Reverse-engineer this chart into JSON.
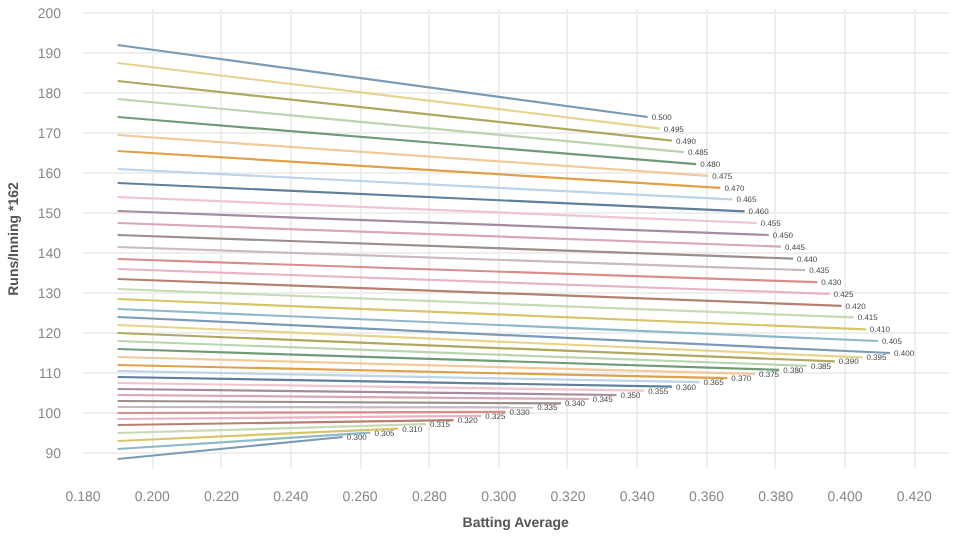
{
  "chart_data": {
    "type": "line",
    "xlabel": "Batting Average",
    "ylabel": "Runs/Inning *162",
    "xlim": [
      0.18,
      0.43
    ],
    "ylim": [
      86,
      201
    ],
    "xticks": [
      {
        "value": 0.18,
        "label": "0.180"
      },
      {
        "value": 0.2,
        "label": "0.200"
      },
      {
        "value": 0.22,
        "label": "0.220"
      },
      {
        "value": 0.24,
        "label": "0.240"
      },
      {
        "value": 0.26,
        "label": "0.260"
      },
      {
        "value": 0.28,
        "label": "0.280"
      },
      {
        "value": 0.3,
        "label": "0.300"
      },
      {
        "value": 0.32,
        "label": "0.320"
      },
      {
        "value": 0.34,
        "label": "0.340"
      },
      {
        "value": 0.36,
        "label": "0.360"
      },
      {
        "value": 0.38,
        "label": "0.380"
      },
      {
        "value": 0.4,
        "label": "0.400"
      },
      {
        "value": 0.42,
        "label": "0.420"
      }
    ],
    "yticks": [
      90,
      100,
      110,
      120,
      130,
      140,
      150,
      160,
      170,
      180,
      190,
      200
    ],
    "grid": true,
    "legend": false,
    "marker": "none",
    "line_style": "solid",
    "series": [
      {
        "name": "0.500",
        "color": "#7a9bb5",
        "x": [
          0.19,
          0.343
        ],
        "values": [
          192,
          174
        ]
      },
      {
        "name": "0.495",
        "color": "#e6d38c",
        "x": [
          0.19,
          0.3465
        ],
        "values": [
          187.5,
          171.1
        ]
      },
      {
        "name": "0.490",
        "color": "#b0a860",
        "x": [
          0.19,
          0.35
        ],
        "values": [
          183,
          168.1
        ]
      },
      {
        "name": "0.485",
        "color": "#b9d5b0",
        "x": [
          0.19,
          0.3535
        ],
        "values": [
          178.5,
          165.2
        ]
      },
      {
        "name": "0.480",
        "color": "#6f9c77",
        "x": [
          0.19,
          0.357
        ],
        "values": [
          174,
          162.2
        ]
      },
      {
        "name": "0.475",
        "color": "#f2c99a",
        "x": [
          0.19,
          0.3605
        ],
        "values": [
          169.5,
          159.3
        ]
      },
      {
        "name": "0.470",
        "color": "#e0a04a",
        "x": [
          0.19,
          0.364
        ],
        "values": [
          165.5,
          156.3
        ]
      },
      {
        "name": "0.465",
        "color": "#bcd3e8",
        "x": [
          0.19,
          0.3675
        ],
        "values": [
          161,
          153.4
        ]
      },
      {
        "name": "0.460",
        "color": "#5f7f9c",
        "x": [
          0.19,
          0.371
        ],
        "values": [
          157.5,
          150.4
        ]
      },
      {
        "name": "0.455",
        "color": "#f0c4cc",
        "x": [
          0.19,
          0.3745
        ],
        "values": [
          154,
          147.5
        ]
      },
      {
        "name": "0.450",
        "color": "#a58aa0",
        "x": [
          0.19,
          0.378
        ],
        "values": [
          150.5,
          144.5
        ]
      },
      {
        "name": "0.445",
        "color": "#d9a7b5",
        "x": [
          0.19,
          0.3815
        ],
        "values": [
          147.5,
          141.6
        ]
      },
      {
        "name": "0.440",
        "color": "#9a8f8a",
        "x": [
          0.19,
          0.385
        ],
        "values": [
          144.5,
          138.6
        ]
      },
      {
        "name": "0.435",
        "color": "#c9b9c4",
        "x": [
          0.19,
          0.3885
        ],
        "values": [
          141.5,
          135.7
        ]
      },
      {
        "name": "0.430",
        "color": "#d98c8c",
        "x": [
          0.19,
          0.392
        ],
        "values": [
          138.5,
          132.7
        ]
      },
      {
        "name": "0.425",
        "color": "#e8b3c6",
        "x": [
          0.19,
          0.3955
        ],
        "values": [
          136,
          129.8
        ]
      },
      {
        "name": "0.420",
        "color": "#b58070",
        "x": [
          0.19,
          0.399
        ],
        "values": [
          133.5,
          126.8
        ]
      },
      {
        "name": "0.415",
        "color": "#c7d9b5",
        "x": [
          0.19,
          0.4025
        ],
        "values": [
          131,
          123.9
        ]
      },
      {
        "name": "0.410",
        "color": "#d9c46a",
        "x": [
          0.19,
          0.406
        ],
        "values": [
          128.5,
          120.9
        ]
      },
      {
        "name": "0.405",
        "color": "#8fb8c9",
        "x": [
          0.19,
          0.4095
        ],
        "values": [
          126,
          118
        ]
      },
      {
        "name": "0.400",
        "color": "#7a9bb5",
        "x": [
          0.19,
          0.413
        ],
        "values": [
          124,
          115
        ]
      },
      {
        "name": "0.395",
        "color": "#e6d38c",
        "x": [
          0.19,
          0.405
        ],
        "values": [
          122,
          113.9
        ]
      },
      {
        "name": "0.390",
        "color": "#b0a860",
        "x": [
          0.19,
          0.397
        ],
        "values": [
          120,
          112.9
        ]
      },
      {
        "name": "0.385",
        "color": "#b9d5b0",
        "x": [
          0.19,
          0.389
        ],
        "values": [
          118,
          111.8
        ]
      },
      {
        "name": "0.380",
        "color": "#6f9c77",
        "x": [
          0.19,
          0.381
        ],
        "values": [
          116,
          110.8
        ]
      },
      {
        "name": "0.375",
        "color": "#f2c99a",
        "x": [
          0.19,
          0.374
        ],
        "values": [
          114,
          109.8
        ]
      },
      {
        "name": "0.370",
        "color": "#e0a04a",
        "x": [
          0.19,
          0.366
        ],
        "values": [
          112,
          108.7
        ]
      },
      {
        "name": "0.365",
        "color": "#bcd3e8",
        "x": [
          0.19,
          0.358
        ],
        "values": [
          110.5,
          107.7
        ]
      },
      {
        "name": "0.360",
        "color": "#5f7f9c",
        "x": [
          0.19,
          0.35
        ],
        "values": [
          109,
          106.6
        ]
      },
      {
        "name": "0.355",
        "color": "#f0c4cc",
        "x": [
          0.19,
          0.342
        ],
        "values": [
          107.5,
          105.6
        ]
      },
      {
        "name": "0.350",
        "color": "#a58aa0",
        "x": [
          0.19,
          0.334
        ],
        "values": [
          106,
          104.5
        ]
      },
      {
        "name": "0.345",
        "color": "#d9a7b5",
        "x": [
          0.19,
          0.326
        ],
        "values": [
          104.5,
          103.5
        ]
      },
      {
        "name": "0.340",
        "color": "#9a8f8a",
        "x": [
          0.19,
          0.318
        ],
        "values": [
          103,
          102.4
        ]
      },
      {
        "name": "0.335",
        "color": "#c9b9c4",
        "x": [
          0.19,
          0.31
        ],
        "values": [
          101.5,
          101.4
        ]
      },
      {
        "name": "0.330",
        "color": "#d98c8c",
        "x": [
          0.19,
          0.302
        ],
        "values": [
          100,
          100.3
        ]
      },
      {
        "name": "0.325",
        "color": "#e8b3c6",
        "x": [
          0.19,
          0.295
        ],
        "values": [
          98.5,
          99.3
        ]
      },
      {
        "name": "0.320",
        "color": "#b58070",
        "x": [
          0.19,
          0.287
        ],
        "values": [
          97,
          98.2
        ]
      },
      {
        "name": "0.315",
        "color": "#c7d9b5",
        "x": [
          0.19,
          0.279
        ],
        "values": [
          95,
          97.2
        ]
      },
      {
        "name": "0.310",
        "color": "#d9c46a",
        "x": [
          0.19,
          0.271
        ],
        "values": [
          93,
          96.1
        ]
      },
      {
        "name": "0.305",
        "color": "#8fb8c9",
        "x": [
          0.19,
          0.263
        ],
        "values": [
          91,
          95.1
        ]
      },
      {
        "name": "0.300",
        "color": "#7a9bb5",
        "x": [
          0.19,
          0.255
        ],
        "values": [
          88.5,
          94
        ]
      }
    ]
  }
}
